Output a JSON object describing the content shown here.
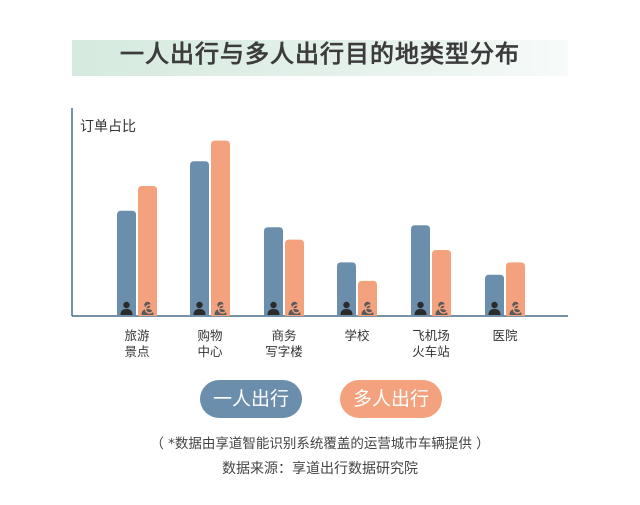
{
  "chart_data": {
    "type": "bar",
    "title": "一人出行与多人出行目的地类型分布",
    "ylabel": "订单占比",
    "categories": [
      [
        "旅游",
        "景点"
      ],
      [
        "购物",
        "中心"
      ],
      [
        "商务",
        "写字楼"
      ],
      [
        "学校"
      ],
      [
        "飞机场",
        "火车站"
      ],
      [
        "医院"
      ]
    ],
    "series": [
      {
        "name": "一人出行",
        "color": "#6b8eac",
        "values": [
          102,
          150,
          86,
          52,
          88,
          40
        ]
      },
      {
        "name": "多人出行",
        "color": "#f4a27e",
        "values": [
          126,
          170,
          74,
          34,
          64,
          52
        ]
      }
    ],
    "ylim": [
      0,
      190
    ],
    "grid": false,
    "legend_position": "bottom"
  },
  "footer": {
    "note": "（ *数据由享道智能识别系统覆盖的运营城市车辆提供 ）",
    "source": "数据来源：享道出行数据研究院"
  }
}
